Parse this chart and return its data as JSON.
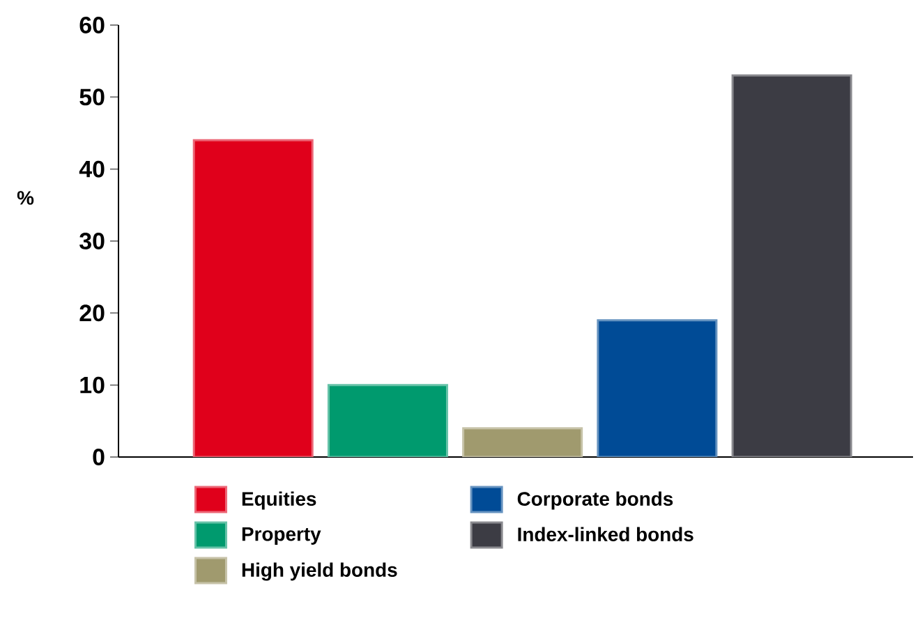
{
  "chart_data": {
    "type": "bar",
    "ylabel": "%",
    "categories": [
      null,
      null,
      null,
      null,
      null
    ],
    "series": [
      {
        "name": "Equities",
        "color": "#e0001b",
        "values": [
          44,
          null,
          null,
          null,
          null
        ]
      },
      {
        "name": "Property",
        "color": "#009a6e",
        "values": [
          null,
          10,
          null,
          null,
          null
        ]
      },
      {
        "name": "High yield bonds",
        "color": "#a09a6e",
        "values": [
          null,
          null,
          4,
          null,
          null
        ]
      },
      {
        "name": "Corporate bonds",
        "color": "#004b96",
        "values": [
          null,
          null,
          null,
          19,
          null
        ]
      },
      {
        "name": "Index-linked bonds",
        "color": "#3c3c44",
        "values": [
          null,
          null,
          null,
          null,
          53
        ]
      }
    ],
    "ylim": [
      0,
      60
    ],
    "yticks": [
      0,
      10,
      20,
      30,
      40,
      50,
      60
    ],
    "legend": "bottom"
  }
}
